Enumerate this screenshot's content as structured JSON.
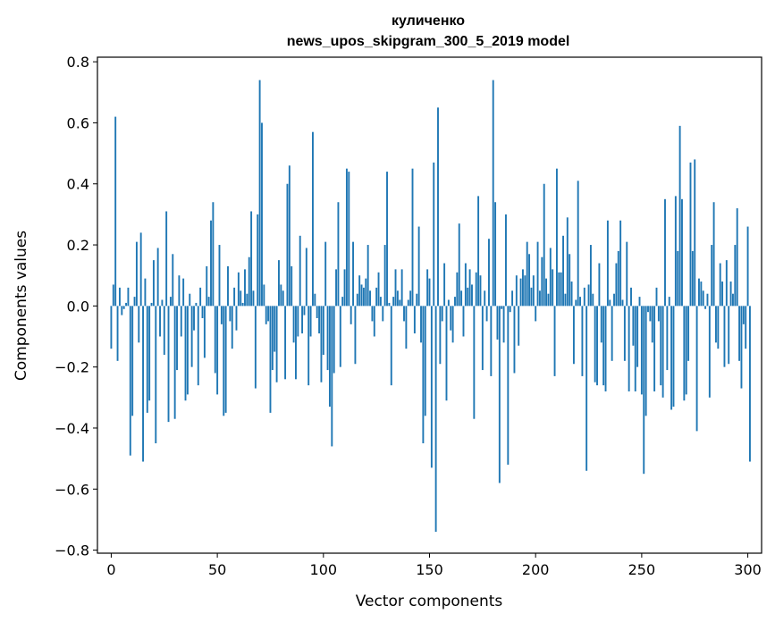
{
  "chart_data": {
    "type": "bar",
    "title_line1": "куличенко",
    "title_line2": "news_upos_skipgram_300_5_2019 model",
    "xlabel": "Vector components",
    "ylabel": "Components values",
    "xlim": [
      -6.5,
      306.5
    ],
    "ylim": [
      -0.81,
      0.815
    ],
    "xticks": [
      0,
      50,
      100,
      150,
      200,
      250,
      300
    ],
    "xtick_labels": [
      "0",
      "50",
      "100",
      "150",
      "200",
      "250",
      "300"
    ],
    "yticks": [
      -0.8,
      -0.6,
      -0.4,
      -0.2,
      0.0,
      0.2,
      0.4,
      0.6,
      0.8
    ],
    "ytick_labels": [
      "−0.8",
      "−0.6",
      "−0.4",
      "−0.2",
      "0.0",
      "0.2",
      "0.4",
      "0.6",
      "0.8"
    ],
    "bar_color": "#1f77b4",
    "values": [
      -0.14,
      0.07,
      0.62,
      -0.18,
      0.06,
      -0.03,
      -0.01,
      0.01,
      0.06,
      -0.49,
      -0.36,
      0.03,
      0.21,
      -0.12,
      0.24,
      -0.51,
      0.09,
      -0.35,
      -0.31,
      0.01,
      0.15,
      -0.45,
      0.19,
      -0.1,
      0.02,
      -0.16,
      0.31,
      -0.38,
      0.03,
      0.17,
      -0.37,
      -0.21,
      0.1,
      -0.1,
      0.09,
      -0.31,
      -0.29,
      0.04,
      -0.2,
      -0.08,
      0.01,
      -0.26,
      0.06,
      -0.04,
      -0.17,
      0.13,
      0.03,
      0.28,
      0.34,
      -0.22,
      -0.29,
      0.2,
      -0.06,
      -0.36,
      -0.35,
      0.13,
      -0.05,
      -0.14,
      0.06,
      -0.08,
      0.11,
      0.05,
      0.01,
      0.12,
      0.04,
      0.16,
      0.31,
      0.05,
      -0.27,
      0.3,
      0.74,
      0.6,
      0.07,
      -0.06,
      -0.05,
      -0.35,
      -0.21,
      -0.15,
      -0.25,
      0.15,
      0.07,
      0.05,
      -0.24,
      0.4,
      0.46,
      0.13,
      -0.12,
      -0.24,
      -0.1,
      0.23,
      -0.09,
      -0.03,
      0.19,
      -0.26,
      -0.1,
      0.57,
      0.04,
      -0.04,
      -0.09,
      -0.25,
      -0.16,
      0.21,
      -0.21,
      -0.33,
      -0.46,
      -0.22,
      0.12,
      0.34,
      -0.2,
      0.03,
      0.12,
      0.45,
      0.44,
      -0.06,
      0.21,
      -0.19,
      0.04,
      0.1,
      0.07,
      0.06,
      0.09,
      0.2,
      0.05,
      -0.05,
      -0.1,
      0.06,
      0.11,
      0.03,
      -0.05,
      0.2,
      0.44,
      0.01,
      -0.26,
      0.03,
      0.12,
      0.05,
      0.02,
      0.12,
      -0.05,
      -0.14,
      0.02,
      0.05,
      0.45,
      -0.09,
      0.04,
      0.26,
      -0.12,
      -0.45,
      -0.36,
      0.12,
      0.09,
      -0.53,
      0.47,
      -0.74,
      0.65,
      -0.19,
      -0.05,
      0.14,
      -0.31,
      0.02,
      -0.08,
      -0.12,
      0.03,
      0.11,
      0.27,
      0.05,
      -0.1,
      0.14,
      0.06,
      0.12,
      0.07,
      -0.37,
      0.11,
      0.36,
      0.1,
      -0.21,
      0.05,
      -0.05,
      0.22,
      -0.23,
      0.74,
      0.34,
      -0.11,
      -0.58,
      -0.01,
      -0.12,
      0.3,
      -0.52,
      -0.02,
      0.05,
      -0.22,
      0.1,
      -0.13,
      0.09,
      0.12,
      0.1,
      0.21,
      0.17,
      0.06,
      0.1,
      -0.05,
      0.21,
      0.05,
      0.16,
      0.4,
      0.09,
      0.04,
      0.19,
      0.12,
      -0.23,
      0.45,
      0.11,
      0.11,
      0.23,
      0.04,
      0.29,
      0.17,
      0.08,
      -0.19,
      0.02,
      0.41,
      0.03,
      -0.23,
      0.06,
      -0.54,
      0.07,
      0.2,
      0.04,
      -0.25,
      -0.26,
      0.14,
      -0.12,
      -0.26,
      -0.28,
      0.28,
      0.02,
      -0.18,
      0.04,
      0.14,
      0.18,
      0.28,
      0.02,
      -0.18,
      0.21,
      -0.28,
      0.06,
      -0.13,
      -0.28,
      -0.2,
      0.03,
      -0.29,
      -0.55,
      -0.36,
      -0.02,
      -0.05,
      -0.12,
      -0.28,
      0.06,
      -0.05,
      -0.26,
      -0.3,
      0.35,
      -0.21,
      0.03,
      -0.34,
      -0.33,
      0.36,
      0.18,
      0.59,
      0.35,
      -0.31,
      -0.29,
      -0.18,
      0.47,
      0.18,
      0.48,
      -0.41,
      0.09,
      0.08,
      0.05,
      -0.01,
      0.04,
      -0.3,
      0.2,
      0.34,
      -0.12,
      -0.14,
      0.14,
      0.08,
      -0.2,
      0.15,
      -0.19,
      0.08,
      0.04,
      0.2,
      0.32,
      -0.18,
      -0.27,
      -0.06,
      -0.14,
      0.26,
      -0.51
    ]
  }
}
